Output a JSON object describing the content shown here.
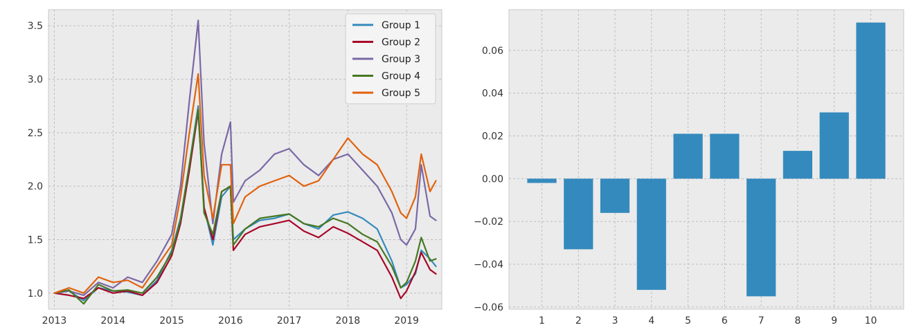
{
  "chart_data": [
    {
      "type": "line",
      "title": "",
      "xlabel": "",
      "ylabel": "",
      "xlim": [
        2012.9,
        2019.6
      ],
      "ylim": [
        0.85,
        3.65
      ],
      "grid": true,
      "legend": "top-right",
      "xticks": [
        2013,
        2014,
        2015,
        2016,
        2017,
        2018,
        2019
      ],
      "xtick_labels": [
        "2013",
        "2014",
        "2015",
        "2016",
        "2017",
        "2018",
        "2019"
      ],
      "yticks": [
        1.0,
        1.5,
        2.0,
        2.5,
        3.0,
        3.5
      ],
      "ytick_labels": [
        "1.0",
        "1.5",
        "2.0",
        "2.5",
        "3.0",
        "3.5"
      ],
      "x": [
        2013.0,
        2013.25,
        2013.5,
        2013.75,
        2014.0,
        2014.25,
        2014.5,
        2014.75,
        2015.0,
        2015.15,
        2015.3,
        2015.45,
        2015.55,
        2015.7,
        2015.85,
        2016.0,
        2016.05,
        2016.25,
        2016.5,
        2016.75,
        2017.0,
        2017.25,
        2017.5,
        2017.75,
        2018.0,
        2018.25,
        2018.5,
        2018.75,
        2018.9,
        2019.0,
        2019.15,
        2019.25,
        2019.4,
        2019.5
      ],
      "series": [
        {
          "name": "Group 1",
          "color": "#348abd",
          "values": [
            1.0,
            1.02,
            0.93,
            1.05,
            1.02,
            1.01,
            0.98,
            1.12,
            1.4,
            1.7,
            2.2,
            2.75,
            1.8,
            1.45,
            1.9,
            2.0,
            1.5,
            1.6,
            1.68,
            1.7,
            1.74,
            1.65,
            1.6,
            1.73,
            1.76,
            1.7,
            1.6,
            1.3,
            1.05,
            1.08,
            1.18,
            1.4,
            1.32,
            1.25
          ]
        },
        {
          "name": "Group 2",
          "color": "#a60628",
          "values": [
            1.0,
            0.98,
            0.95,
            1.05,
            1.0,
            1.02,
            0.98,
            1.1,
            1.35,
            1.65,
            2.15,
            2.7,
            1.8,
            1.5,
            1.95,
            2.0,
            1.4,
            1.55,
            1.62,
            1.65,
            1.68,
            1.58,
            1.52,
            1.62,
            1.56,
            1.48,
            1.4,
            1.15,
            0.95,
            1.02,
            1.2,
            1.38,
            1.22,
            1.18
          ]
        },
        {
          "name": "Group 3",
          "color": "#7a68a6",
          "values": [
            1.0,
            1.02,
            0.98,
            1.1,
            1.05,
            1.15,
            1.1,
            1.3,
            1.55,
            2.0,
            2.8,
            3.55,
            2.4,
            1.65,
            2.3,
            2.6,
            1.85,
            2.05,
            2.15,
            2.3,
            2.35,
            2.2,
            2.1,
            2.25,
            2.3,
            2.15,
            2.0,
            1.75,
            1.5,
            1.45,
            1.6,
            2.2,
            1.72,
            1.68
          ]
        },
        {
          "name": "Group 4",
          "color": "#467821",
          "values": [
            1.0,
            1.03,
            0.9,
            1.08,
            1.02,
            1.03,
            1.0,
            1.15,
            1.38,
            1.68,
            2.2,
            2.72,
            1.75,
            1.55,
            1.95,
            2.0,
            1.45,
            1.6,
            1.7,
            1.72,
            1.74,
            1.65,
            1.62,
            1.7,
            1.65,
            1.55,
            1.48,
            1.25,
            1.05,
            1.1,
            1.3,
            1.52,
            1.3,
            1.32
          ]
        },
        {
          "name": "Group 5",
          "color": "#e1620e",
          "values": [
            1.0,
            1.05,
            1.0,
            1.15,
            1.1,
            1.12,
            1.05,
            1.25,
            1.45,
            1.9,
            2.5,
            3.05,
            2.1,
            1.7,
            2.2,
            2.2,
            1.65,
            1.9,
            2.0,
            2.05,
            2.1,
            2.0,
            2.05,
            2.25,
            2.45,
            2.3,
            2.2,
            1.95,
            1.75,
            1.7,
            1.9,
            2.3,
            1.95,
            2.05
          ]
        }
      ]
    },
    {
      "type": "bar",
      "title": "",
      "xlabel": "",
      "ylabel": "",
      "categories": [
        "1",
        "2",
        "3",
        "4",
        "5",
        "6",
        "7",
        "8",
        "9",
        "10"
      ],
      "values": [
        -0.002,
        -0.033,
        -0.016,
        -0.052,
        0.021,
        0.021,
        -0.055,
        0.013,
        0.031,
        0.073
      ],
      "ylim": [
        -0.061,
        0.079
      ],
      "grid": true,
      "color": "#348abd",
      "yticks": [
        -0.06,
        -0.04,
        -0.02,
        0.0,
        0.02,
        0.04,
        0.06
      ],
      "ytick_labels": [
        "−0.06",
        "−0.04",
        "−0.02",
        "0.00",
        "0.02",
        "0.04",
        "0.06"
      ]
    }
  ]
}
